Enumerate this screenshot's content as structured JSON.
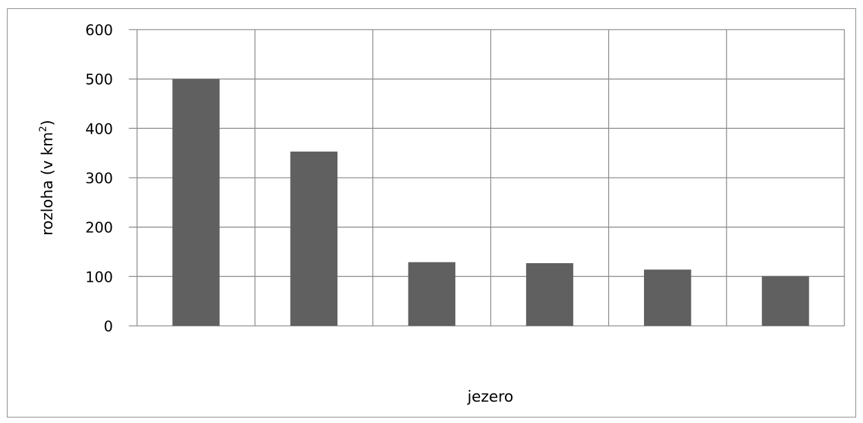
{
  "chart_data": {
    "type": "bar",
    "title": "",
    "xlabel": "jezero",
    "ylabel": "rozloha (v km²)",
    "ylabel_main": "rozloha (v km",
    "ylabel_sup": "2",
    "ylabel_end": ")",
    "categories": [
      "",
      "",
      "",
      "",
      "",
      ""
    ],
    "values": [
      500,
      353,
      129,
      127,
      114,
      101
    ],
    "ylim": [
      0,
      600
    ],
    "yticks": [
      0,
      100,
      200,
      300,
      400,
      500,
      600
    ],
    "grid": true,
    "bar_color": "#606060",
    "grid_color": "#8c8c8c"
  }
}
